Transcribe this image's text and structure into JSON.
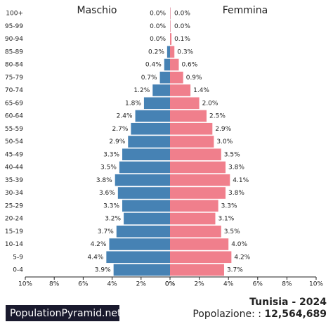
{
  "chart_data": {
    "type": "pyramid",
    "title": "Tunisia - 2024",
    "population_label": "Popolazione: :",
    "population": "12,564,689",
    "watermark": "PopulationPyramid.net",
    "categories": [
      "100+",
      "95-99",
      "90-94",
      "85-89",
      "80-84",
      "75-79",
      "70-74",
      "65-69",
      "60-64",
      "55-59",
      "50-54",
      "45-49",
      "40-44",
      "35-39",
      "30-34",
      "25-29",
      "20-24",
      "15-19",
      "10-14",
      "5-9",
      "0-4"
    ],
    "series": [
      {
        "name": "Maschio",
        "color": "#4682b4",
        "side": "left",
        "values": [
          0.0,
          0.0,
          0.0,
          0.2,
          0.4,
          0.7,
          1.2,
          1.8,
          2.4,
          2.7,
          2.9,
          3.3,
          3.5,
          3.8,
          3.6,
          3.3,
          3.2,
          3.7,
          4.2,
          4.4,
          3.9
        ],
        "value_labels": [
          "0.0%",
          "0.0%",
          "0.0%",
          "0.2%",
          "0.4%",
          "0.7%",
          "1.2%",
          "1.8%",
          "2.4%",
          "2.7%",
          "2.9%",
          "3.3%",
          "3.5%",
          "3.8%",
          "3.6%",
          "3.3%",
          "3.2%",
          "3.7%",
          "4.2%",
          "4.4%",
          "3.9%"
        ],
        "xlim": [
          10,
          0
        ],
        "xticks": [
          {
            "value": 10,
            "label": "10%"
          },
          {
            "value": 8,
            "label": "8%"
          },
          {
            "value": 6,
            "label": "6%"
          },
          {
            "value": 4,
            "label": "4%"
          },
          {
            "value": 2,
            "label": "2%"
          },
          {
            "value": 0,
            "label": "0%"
          }
        ]
      },
      {
        "name": "Femmina",
        "color": "#f07f8c",
        "side": "right",
        "values": [
          0.0,
          0.0,
          0.1,
          0.3,
          0.6,
          0.9,
          1.4,
          2.0,
          2.5,
          2.9,
          3.0,
          3.5,
          3.8,
          4.1,
          3.8,
          3.3,
          3.1,
          3.5,
          4.0,
          4.2,
          3.7
        ],
        "value_labels": [
          "0.0%",
          "0.0%",
          "0.1%",
          "0.3%",
          "0.6%",
          "0.9%",
          "1.4%",
          "2.0%",
          "2.5%",
          "2.9%",
          "3.0%",
          "3.5%",
          "3.8%",
          "4.1%",
          "3.8%",
          "3.3%",
          "3.1%",
          "3.5%",
          "4.0%",
          "4.2%",
          "3.7%"
        ],
        "xlim": [
          0,
          10
        ],
        "xticks": [
          {
            "value": 0,
            "label": "0%"
          },
          {
            "value": 2,
            "label": "2%"
          },
          {
            "value": 4,
            "label": "4%"
          },
          {
            "value": 6,
            "label": "6%"
          },
          {
            "value": 8,
            "label": "8%"
          },
          {
            "value": 10,
            "label": "10%"
          }
        ]
      }
    ]
  }
}
